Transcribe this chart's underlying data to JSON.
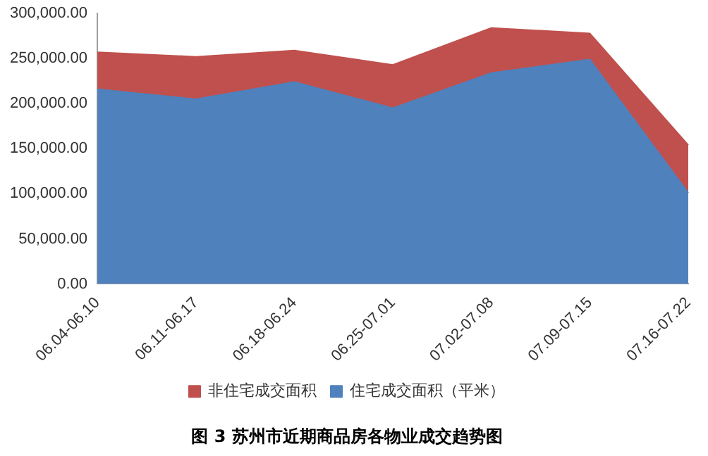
{
  "chart_data": {
    "type": "area",
    "title": "图 3 苏州市近期商品房各物业成交趋势图",
    "stacked": true,
    "categories": [
      "06.04-06.10",
      "06.11-06.17",
      "06.18-06.24",
      "06.25-07.01",
      "07.02-07.08",
      "07.09-07.15",
      "07.16-07.22"
    ],
    "series": [
      {
        "name": "住宅成交面积（平米）",
        "color": "#4f81bd",
        "values": [
          216000,
          205000,
          224000,
          195000,
          234000,
          249000,
          101000
        ]
      },
      {
        "name": "非住宅成交面积",
        "color": "#c0504d",
        "values": [
          41000,
          47000,
          35000,
          48000,
          50000,
          29000,
          53000
        ]
      }
    ],
    "ylim": [
      0,
      300000
    ],
    "yticks": [
      {
        "value": 0,
        "label": "0.00"
      },
      {
        "value": 50000,
        "label": "50,000.00"
      },
      {
        "value": 100000,
        "label": "100,000.00"
      },
      {
        "value": 150000,
        "label": "150,000.00"
      },
      {
        "value": 200000,
        "label": "200,000.00"
      },
      {
        "value": 250000,
        "label": "250,000.00"
      },
      {
        "value": 300000,
        "label": "300,000.00"
      }
    ],
    "grid": false,
    "legend": "bottom"
  }
}
